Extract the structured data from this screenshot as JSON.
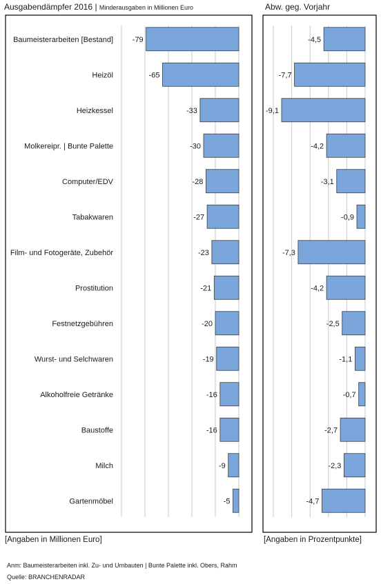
{
  "header": {
    "left_title": "Ausgabendämpfer 2016",
    "left_subtitle": "Minderausgaben in Millionen Euro",
    "right_title": "Abw. geg. Vorjahr"
  },
  "notes": {
    "left": "[Angaben in Millionen Euro]",
    "right": "[Angaben in Prozentpunkte]"
  },
  "footer": {
    "anm": "Anm: Baumeisterarbeiten inkl. Zu- und Umbauten | Bunte Palette inkl. Obers, Rahm",
    "source": "Quelle: BRANCHENRADAR"
  },
  "colors": {
    "bar_fill": "#7ba6dc",
    "bar_stroke": "#3a3a3a",
    "grid": "#c8c8c8",
    "frame": "#000000"
  },
  "chart_data": [
    {
      "type": "bar",
      "orientation": "horizontal",
      "title": "Ausgabendämpfer 2016",
      "subtitle": "Minderausgaben in Millionen Euro",
      "categories": [
        "Baumeisterarbeiten [Bestand]",
        "Heizöl",
        "Heizkessel",
        "Molkereipr. | Bunte Palette",
        "Computer/EDV",
        "Tabakwaren",
        "Film- und Fotogeräte, Zubehör",
        "Prostitution",
        "Festnetzgebühren",
        "Wurst- und Selchwaren",
        "Alkoholfreie Getränke",
        "Baustoffe",
        "Milch",
        "Gartenmöbel"
      ],
      "values": [
        -79,
        -65,
        -33,
        -30,
        -28,
        -27,
        -23,
        -21,
        -20,
        -19,
        -16,
        -16,
        -9,
        -5
      ],
      "labels": [
        "-79",
        "-65",
        "-33",
        "-30",
        "-28",
        "-27",
        "-23",
        "-21",
        "-20",
        "-19",
        "-16",
        "-16",
        "-9",
        "-5"
      ],
      "xlim": [
        -100,
        0
      ],
      "grid": true
    },
    {
      "type": "bar",
      "orientation": "horizontal",
      "title": "Abw. geg. Vorjahr",
      "categories": [
        "Baumeisterarbeiten [Bestand]",
        "Heizöl",
        "Heizkessel",
        "Molkereipr. | Bunte Palette",
        "Computer/EDV",
        "Tabakwaren",
        "Film- und Fotogeräte, Zubehör",
        "Prostitution",
        "Festnetzgebühren",
        "Wurst- und Selchwaren",
        "Alkoholfreie Getränke",
        "Baustoffe",
        "Milch",
        "Gartenmöbel"
      ],
      "values": [
        -4.5,
        -7.7,
        -9.1,
        -4.2,
        -3.1,
        -0.9,
        -7.3,
        -4.2,
        -2.5,
        -1.1,
        -0.7,
        -2.7,
        -2.3,
        -4.7
      ],
      "labels": [
        "-4,5",
        "-7,7",
        "-9,1",
        "-4,2",
        "-3,1",
        "-0,9",
        "-7,3",
        "-4,2",
        "-2,5",
        "-1,1",
        "-0,7",
        "-2,7",
        "-2,3",
        "-4,7"
      ],
      "xlim": [
        -10,
        0
      ],
      "grid": true
    }
  ]
}
